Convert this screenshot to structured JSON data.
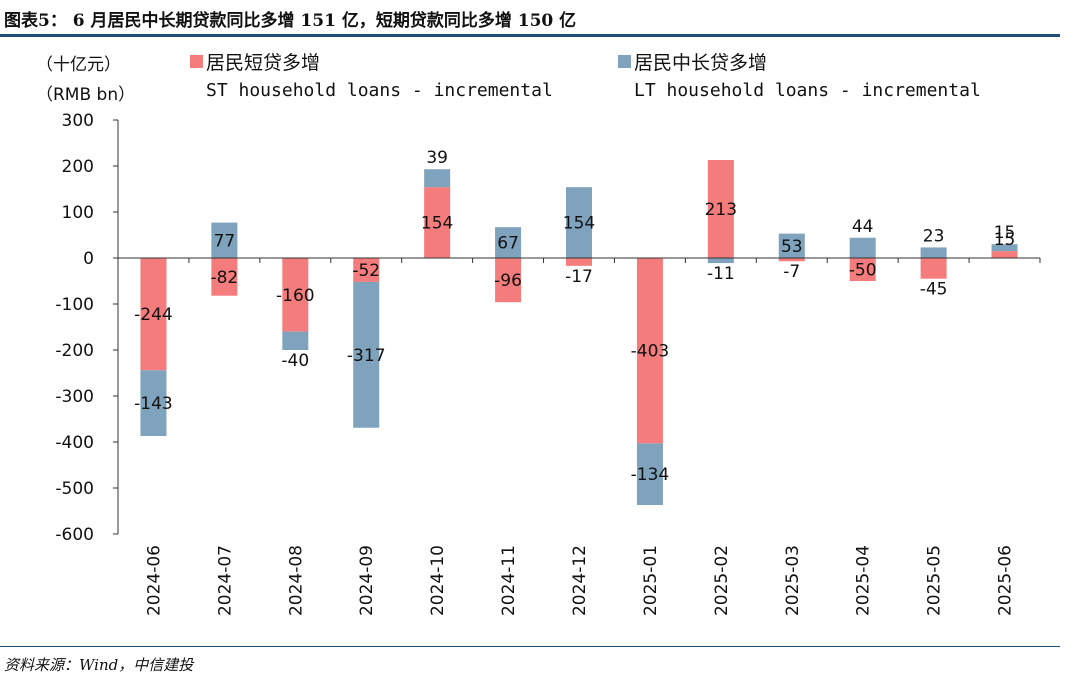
{
  "header": {
    "title": "图表5： 6 月居民中长期贷款同比多增 151 亿，短期贷款同比多增 150 亿"
  },
  "footer": {
    "source": "资料来源：Wind，中信建投"
  },
  "chart_data": {
    "type": "bar",
    "stacked": true,
    "unit_label_cn": "（十亿元）",
    "unit_label_en": "（RMB bn）",
    "categories": [
      "2024-06",
      "2024-07",
      "2024-08",
      "2024-09",
      "2024-10",
      "2024-11",
      "2024-12",
      "2025-01",
      "2025-02",
      "2025-03",
      "2025-04",
      "2025-05",
      "2025-06"
    ],
    "series": [
      {
        "name": "居民短贷多增",
        "name_en": "ST household loans - incremental",
        "color": "#f47c7c",
        "values": [
          -244,
          -82,
          -160,
          -52,
          154,
          -96,
          -17,
          -403,
          213,
          -7,
          -50,
          -45,
          15
        ]
      },
      {
        "name": "居民中长贷多增",
        "name_en": "LT household loans - incremental",
        "color": "#7fa2bd",
        "values": [
          -143,
          77,
          -40,
          -317,
          39,
          67,
          154,
          -134,
          -11,
          53,
          44,
          23,
          15
        ]
      }
    ],
    "ylim": [
      -600,
      300
    ],
    "yticks": [
      300,
      200,
      100,
      0,
      -100,
      -200,
      -300,
      -400,
      -500,
      -600
    ],
    "legend_position": "top"
  }
}
